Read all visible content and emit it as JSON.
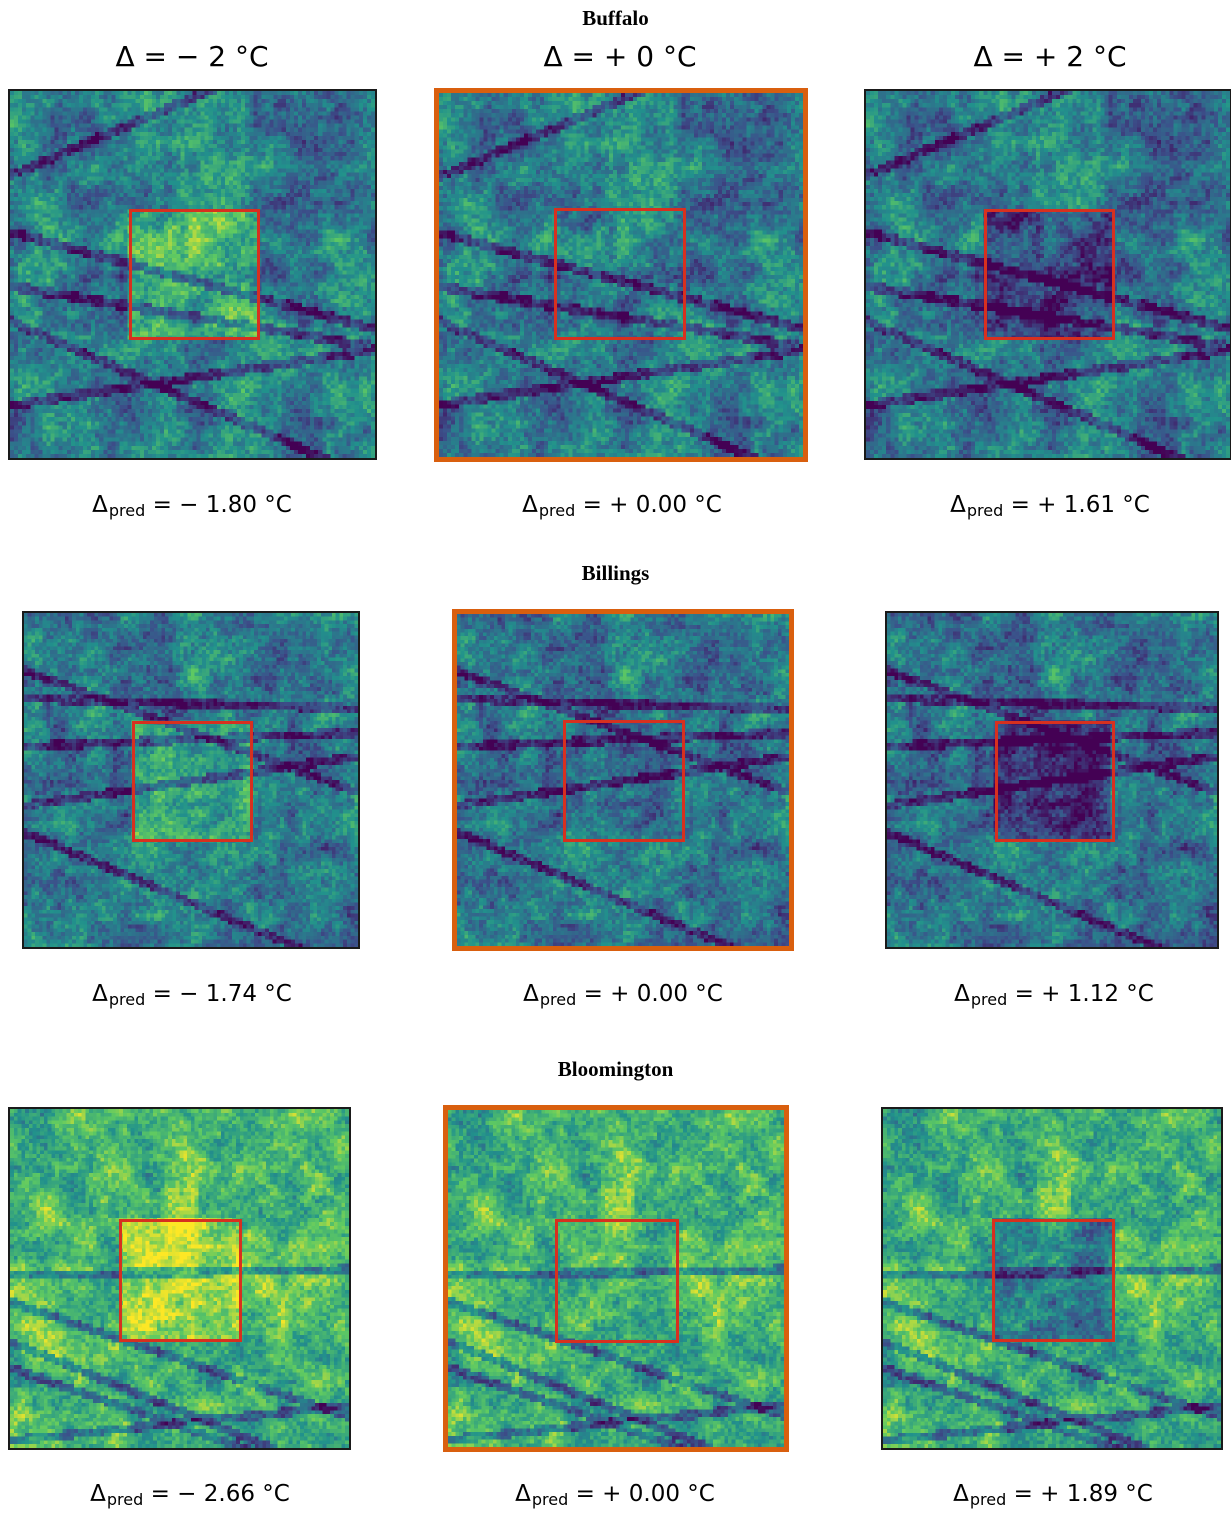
{
  "column_headers": [
    "Δ = − 2 °C",
    "Δ = + 0 °C",
    "Δ = + 2 °C"
  ],
  "pred_symbol": "Δ",
  "pred_subscript": "pred",
  "accent_colors": {
    "selected_frame": "#d95f0e",
    "region_box": "#d7301f"
  },
  "colormap": "viridis",
  "rows": [
    {
      "city": "Buffalo",
      "panels": [
        {
          "pred": "= − 1.80 °C",
          "selected": false
        },
        {
          "pred": "= + 0.00 °C",
          "selected": true
        },
        {
          "pred": "= + 1.61 °C",
          "selected": false
        }
      ]
    },
    {
      "city": "Billings",
      "panels": [
        {
          "pred": "= − 1.74 °C",
          "selected": false
        },
        {
          "pred": "= + 0.00 °C",
          "selected": true
        },
        {
          "pred": "= + 1.12 °C",
          "selected": false
        }
      ]
    },
    {
      "city": "Bloomington",
      "panels": [
        {
          "pred": "= − 2.66 °C",
          "selected": false
        },
        {
          "pred": "= + 0.00 °C",
          "selected": true
        },
        {
          "pred": "= + 1.89 °C",
          "selected": false
        }
      ]
    }
  ]
}
